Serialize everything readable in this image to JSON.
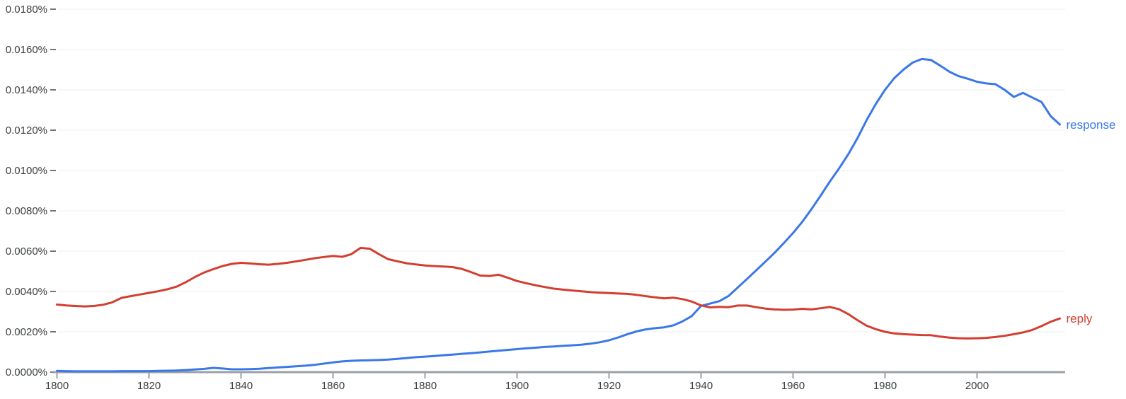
{
  "chart": {
    "background": "#ffffff",
    "grid_color": "#efefef",
    "axis_color": "#9aa0a6",
    "tick_color": "#757575",
    "label_color": "#3c4043",
    "yticks": [
      {
        "label": "0.0000%",
        "value": 0.0
      },
      {
        "label": "0.0020%",
        "value": 0.002
      },
      {
        "label": "0.0040%",
        "value": 0.004
      },
      {
        "label": "0.0060%",
        "value": 0.006
      },
      {
        "label": "0.0080%",
        "value": 0.008
      },
      {
        "label": "0.0100%",
        "value": 0.01
      },
      {
        "label": "0.0120%",
        "value": 0.012
      },
      {
        "label": "0.0140%",
        "value": 0.014
      },
      {
        "label": "0.0160%",
        "value": 0.016
      },
      {
        "label": "0.0180%",
        "value": 0.018
      }
    ],
    "xticks": [
      {
        "label": "1800",
        "value": 1800
      },
      {
        "label": "1820",
        "value": 1820
      },
      {
        "label": "1840",
        "value": 1840
      },
      {
        "label": "1860",
        "value": 1860
      },
      {
        "label": "1880",
        "value": 1880
      },
      {
        "label": "1900",
        "value": 1900
      },
      {
        "label": "1920",
        "value": 1920
      },
      {
        "label": "1940",
        "value": 1940
      },
      {
        "label": "1960",
        "value": 1960
      },
      {
        "label": "1980",
        "value": 1980
      },
      {
        "label": "2000",
        "value": 2000
      }
    ]
  },
  "chart_data": {
    "type": "line",
    "x_start": 1800,
    "x_step": 2,
    "x_end": 2018,
    "xlim": [
      1800,
      2019
    ],
    "ylim_percent": [
      0,
      0.018
    ],
    "grid": true,
    "legend_position": "line-end-labels",
    "value_unit": "percent of corpus",
    "series": [
      {
        "name": "response",
        "color": "#3b78e7",
        "values": [
          6e-05,
          5e-05,
          4e-05,
          4e-05,
          4e-05,
          4e-05,
          4e-05,
          5e-05,
          5e-05,
          5e-05,
          5e-05,
          6e-05,
          7e-05,
          8e-05,
          0.0001,
          0.00013,
          0.00016,
          0.00021,
          0.00018,
          0.00014,
          0.00014,
          0.00015,
          0.00017,
          0.0002,
          0.00023,
          0.00026,
          0.00029,
          0.00032,
          0.00036,
          0.00042,
          0.00048,
          0.00053,
          0.00056,
          0.00058,
          0.00059,
          0.0006,
          0.00062,
          0.00066,
          0.0007,
          0.00074,
          0.00077,
          0.0008,
          0.00084,
          0.00087,
          0.00091,
          0.00094,
          0.00098,
          0.00102,
          0.00106,
          0.0011,
          0.00114,
          0.00118,
          0.00121,
          0.00125,
          0.00127,
          0.0013,
          0.00133,
          0.00136,
          0.00141,
          0.00148,
          0.00158,
          0.00172,
          0.00188,
          0.00202,
          0.00212,
          0.00218,
          0.00222,
          0.00232,
          0.00252,
          0.00278,
          0.00328,
          0.0034,
          0.00352,
          0.00378,
          0.0042,
          0.00462,
          0.00505,
          0.00548,
          0.00592,
          0.0064,
          0.0069,
          0.00745,
          0.00808,
          0.00875,
          0.00945,
          0.0101,
          0.0108,
          0.0116,
          0.0125,
          0.0133,
          0.014,
          0.01458,
          0.015,
          0.01535,
          0.01553,
          0.01548,
          0.0152,
          0.0149,
          0.01468,
          0.01455,
          0.0144,
          0.01432,
          0.01428,
          0.014,
          0.01365,
          0.01385,
          0.01362,
          0.0134,
          0.0127,
          0.01228
        ]
      },
      {
        "name": "reply",
        "color": "#d23f31",
        "values": [
          0.00335,
          0.00331,
          0.00328,
          0.00326,
          0.00328,
          0.00334,
          0.00346,
          0.00368,
          0.00377,
          0.00385,
          0.00393,
          0.00401,
          0.00411,
          0.00424,
          0.00446,
          0.00472,
          0.00494,
          0.00511,
          0.00526,
          0.00537,
          0.00542,
          0.00539,
          0.00535,
          0.00533,
          0.00537,
          0.00542,
          0.00549,
          0.00557,
          0.00565,
          0.00571,
          0.00576,
          0.00572,
          0.00585,
          0.00616,
          0.00612,
          0.00585,
          0.0056,
          0.0055,
          0.0054,
          0.00534,
          0.00529,
          0.00526,
          0.00524,
          0.00521,
          0.00512,
          0.00496,
          0.00479,
          0.00477,
          0.00483,
          0.00468,
          0.00452,
          0.00441,
          0.00431,
          0.00422,
          0.00414,
          0.00409,
          0.00405,
          0.00401,
          0.00397,
          0.00394,
          0.00392,
          0.0039,
          0.00388,
          0.00383,
          0.00377,
          0.00371,
          0.00366,
          0.00369,
          0.00362,
          0.0035,
          0.00331,
          0.00321,
          0.00324,
          0.00322,
          0.0033,
          0.0033,
          0.00322,
          0.00315,
          0.00311,
          0.00309,
          0.0031,
          0.00314,
          0.00311,
          0.00317,
          0.00323,
          0.00312,
          0.00288,
          0.00258,
          0.0023,
          0.00213,
          0.002,
          0.00192,
          0.00188,
          0.00186,
          0.00184,
          0.00183,
          0.00176,
          0.00171,
          0.00168,
          0.00167,
          0.00168,
          0.0017,
          0.00174,
          0.0018,
          0.00188,
          0.00197,
          0.00209,
          0.00228,
          0.0025,
          0.00266
        ]
      }
    ]
  }
}
